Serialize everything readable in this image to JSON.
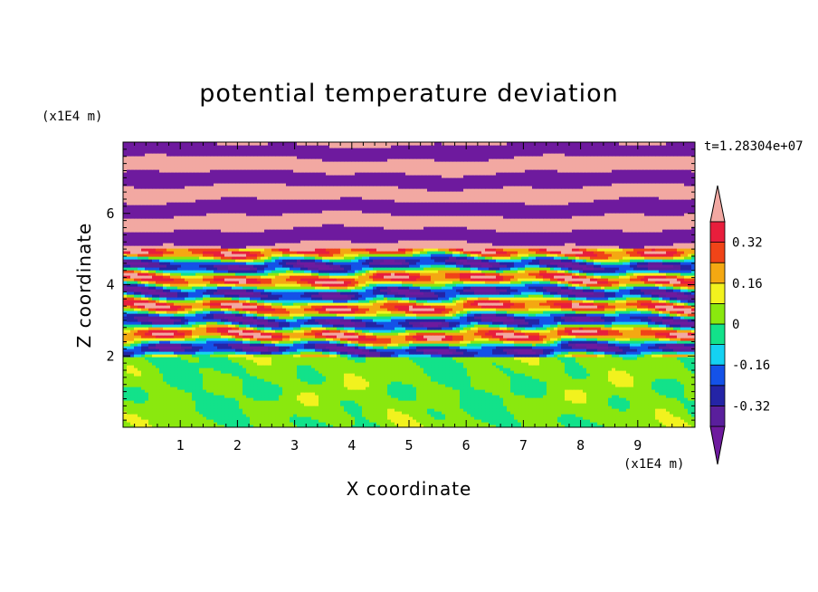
{
  "chart_data": {
    "type": "heatmap",
    "title": "potential temperature deviation",
    "xlabel": "X coordinate",
    "ylabel": "Z coordinate",
    "x_unit": "(x1E4 m)",
    "y_unit": "(x1E4 m)",
    "time_label": "t=1.28304e+07",
    "xlim": [
      0,
      10
    ],
    "ylim": [
      0,
      8
    ],
    "x_ticks": [
      1,
      2,
      3,
      4,
      5,
      6,
      7,
      8,
      9
    ],
    "y_ticks": [
      2,
      4,
      6
    ],
    "colorbar": {
      "levels": [
        -0.4,
        -0.32,
        -0.24,
        -0.16,
        -0.08,
        0,
        0.08,
        0.16,
        0.24,
        0.32,
        0.4
      ],
      "labels": [
        "0.32",
        "0.16",
        "0",
        "-0.16",
        "-0.32"
      ],
      "label_values": [
        0.32,
        0.16,
        0,
        -0.16,
        -0.32
      ],
      "colors_low_to_high": [
        "#5a1f9c",
        "#2424a6",
        "#1452e8",
        "#14d2f2",
        "#12e28a",
        "#8ae80e",
        "#f2f21e",
        "#f4a812",
        "#f04418",
        "#e81e3c"
      ],
      "under_color": "#6e1a9e",
      "over_color": "#f2a8a2"
    },
    "field_description_bands": [
      {
        "z_range": [
          0,
          1.95
        ],
        "values_range": [
          -0.08,
          0.08
        ]
      },
      {
        "z_range": [
          1.95,
          5.0
        ],
        "values_range": [
          -0.4,
          0.4
        ]
      },
      {
        "z_range": [
          5.0,
          8.0
        ],
        "values_range": [
          -0.5,
          0.5
        ]
      }
    ]
  }
}
